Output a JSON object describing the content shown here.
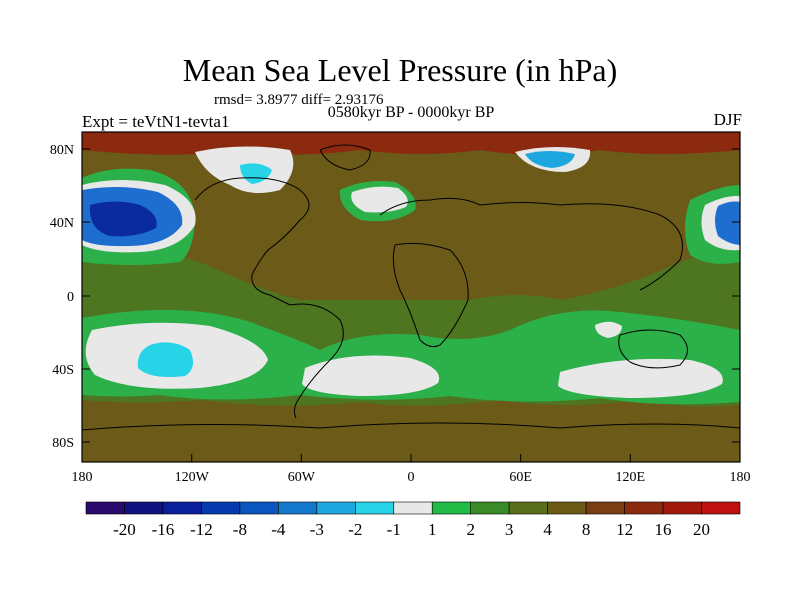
{
  "title": "Mean Sea Level Pressure (in hPa)",
  "stats": "rmsd= 3.8977 diff= 2.93176",
  "period": "0580kyr BP - 0000kyr BP",
  "experiment": "Expt = teVtN1-tevta1",
  "season": "DJF",
  "y_axis_labels": [
    "80N",
    "40N",
    "0",
    "40S",
    "80S"
  ],
  "x_axis_labels": [
    "180",
    "120W",
    "60W",
    "0",
    "60E",
    "120E",
    "180"
  ],
  "colorbar": {
    "labels": [
      "-20",
      "-16",
      "-12",
      "-8",
      "-4",
      "-3",
      "-2",
      "-1",
      "1",
      "2",
      "3",
      "4",
      "8",
      "12",
      "16",
      "20"
    ],
    "colors": [
      "#2a0a6a",
      "#101080",
      "#0a1f9c",
      "#0638b0",
      "#0a55c0",
      "#1378cc",
      "#1ea6de",
      "#27d3e6",
      "#e8e8e8",
      "#22bb45",
      "#3a8a2a",
      "#5a6e1c",
      "#6a5a14",
      "#7a3e12",
      "#8c2a10",
      "#a31a0d",
      "#c01010"
    ]
  },
  "colors": {
    "background_field": "#6b5a18",
    "mid_band": "#4e7520",
    "green_band": "#2bb04a",
    "white_patch": "#e8e8e8",
    "cyan_patch": "#27d3e6",
    "deep_blue": "#0a2aa0",
    "arctic_red": "#8c2a10"
  }
}
